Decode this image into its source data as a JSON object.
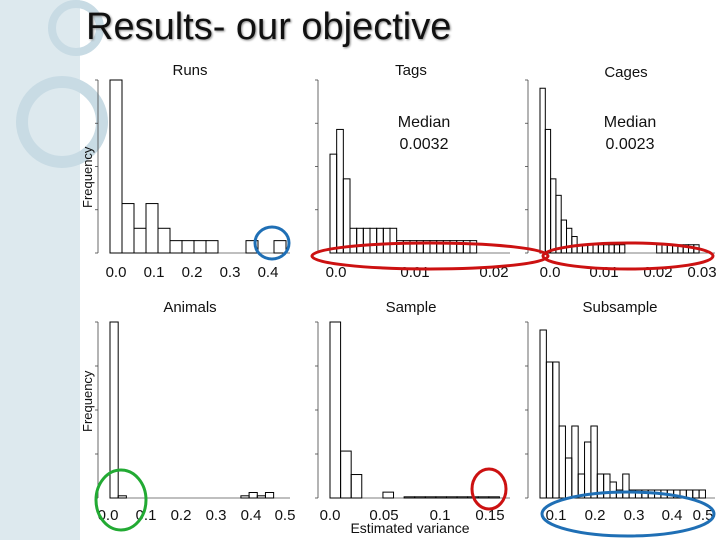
{
  "slide": {
    "title": "Results- our objective",
    "accent_color": "#dde9ee",
    "circle_colors": {
      "red": "#cc1111",
      "blue": "#1f6fb5",
      "green": "#22aa33",
      "deco": "#c8dbe4"
    }
  },
  "chart_data": [
    {
      "type": "bar",
      "title": "Runs",
      "ylabel": "Frequency",
      "xlim": [
        0.0,
        0.45
      ],
      "xticks": [
        "0.0",
        "0.1",
        "0.2",
        "0.3",
        "0.4"
      ],
      "ylim": [
        0,
        7
      ],
      "bins": [
        [
          0.0,
          0.03,
          7
        ],
        [
          0.03,
          0.06,
          2
        ],
        [
          0.06,
          0.09,
          1
        ],
        [
          0.09,
          0.12,
          2
        ],
        [
          0.12,
          0.15,
          1
        ],
        [
          0.15,
          0.18,
          0.5
        ],
        [
          0.18,
          0.21,
          0.5
        ],
        [
          0.21,
          0.24,
          0.5
        ],
        [
          0.24,
          0.27,
          0.5
        ],
        [
          0.34,
          0.37,
          0.5
        ],
        [
          0.41,
          0.44,
          0.5
        ]
      ],
      "annotations": []
    },
    {
      "type": "bar",
      "title": "Tags",
      "ylabel": "",
      "xlim": [
        0.0,
        0.027
      ],
      "xticks": [
        "0.0",
        "0.01",
        "0.02"
      ],
      "ylim": [
        0,
        7
      ],
      "bins": [
        [
          0.0,
          0.001,
          4
        ],
        [
          0.001,
          0.002,
          5
        ],
        [
          0.002,
          0.003,
          3
        ],
        [
          0.003,
          0.004,
          1
        ],
        [
          0.004,
          0.005,
          1
        ],
        [
          0.005,
          0.006,
          1
        ],
        [
          0.006,
          0.007,
          1
        ],
        [
          0.007,
          0.008,
          1
        ],
        [
          0.008,
          0.009,
          1
        ],
        [
          0.009,
          0.01,
          1
        ],
        [
          0.01,
          0.011,
          0.5
        ],
        [
          0.011,
          0.012,
          0.5
        ],
        [
          0.012,
          0.013,
          0.5
        ],
        [
          0.013,
          0.014,
          0.5
        ],
        [
          0.014,
          0.015,
          0.5
        ],
        [
          0.015,
          0.016,
          0.5
        ],
        [
          0.016,
          0.017,
          0.5
        ],
        [
          0.017,
          0.018,
          0.5
        ],
        [
          0.018,
          0.019,
          0.5
        ],
        [
          0.019,
          0.02,
          0.5
        ],
        [
          0.02,
          0.021,
          0.5
        ],
        [
          0.021,
          0.022,
          0.5
        ]
      ],
      "annotations": [
        "Median",
        "0.0032"
      ]
    },
    {
      "type": "bar",
      "title": "Cages",
      "ylabel": "",
      "xlim": [
        0.0,
        0.033
      ],
      "xticks": [
        "0.0",
        "0.01",
        "0.02",
        "0.03"
      ],
      "ylim": [
        0,
        21
      ],
      "bins": [
        [
          0.0,
          0.001,
          20
        ],
        [
          0.001,
          0.002,
          15
        ],
        [
          0.002,
          0.003,
          9
        ],
        [
          0.003,
          0.004,
          7
        ],
        [
          0.004,
          0.005,
          4
        ],
        [
          0.005,
          0.006,
          3
        ],
        [
          0.006,
          0.007,
          2
        ],
        [
          0.007,
          0.008,
          1
        ],
        [
          0.008,
          0.009,
          1
        ],
        [
          0.009,
          0.01,
          1
        ],
        [
          0.01,
          0.011,
          1
        ],
        [
          0.011,
          0.012,
          1
        ],
        [
          0.012,
          0.013,
          1
        ],
        [
          0.013,
          0.014,
          1
        ],
        [
          0.014,
          0.015,
          1
        ],
        [
          0.015,
          0.016,
          1
        ],
        [
          0.022,
          0.023,
          1
        ],
        [
          0.023,
          0.024,
          1
        ],
        [
          0.024,
          0.025,
          1
        ],
        [
          0.025,
          0.026,
          1
        ],
        [
          0.026,
          0.027,
          1
        ],
        [
          0.027,
          0.028,
          1
        ],
        [
          0.028,
          0.029,
          1
        ],
        [
          0.029,
          0.03,
          1
        ]
      ],
      "annotations": [
        "Median",
        "0.0023"
      ]
    },
    {
      "type": "bar",
      "title": "Animals",
      "ylabel": "Frequency",
      "xlim": [
        0.0,
        0.55
      ],
      "xticks": [
        "0.0",
        "0.1",
        "0.2",
        "0.3",
        "0.4",
        "0.5"
      ],
      "ylim": [
        0,
        8
      ],
      "bins": [
        [
          0.0,
          0.025,
          8
        ],
        [
          0.025,
          0.05,
          0.1
        ],
        [
          0.4,
          0.425,
          0.1
        ],
        [
          0.425,
          0.45,
          0.25
        ],
        [
          0.45,
          0.475,
          0.1
        ],
        [
          0.475,
          0.5,
          0.25
        ]
      ],
      "annotations": []
    },
    {
      "type": "bar",
      "title": "Sample",
      "ylabel": "",
      "xlabel": "Estimated variance",
      "xlim": [
        0.0,
        0.17
      ],
      "xticks": [
        "0.0",
        "0.05",
        "0.1",
        "0.15"
      ],
      "ylim": [
        0,
        30
      ],
      "bins": [
        [
          0.0,
          0.01,
          30
        ],
        [
          0.01,
          0.02,
          8
        ],
        [
          0.02,
          0.03,
          4
        ],
        [
          0.05,
          0.06,
          1
        ],
        [
          0.07,
          0.08,
          0.2
        ],
        [
          0.08,
          0.09,
          0.2
        ],
        [
          0.09,
          0.1,
          0.2
        ],
        [
          0.1,
          0.11,
          0.2
        ],
        [
          0.11,
          0.12,
          0.2
        ],
        [
          0.12,
          0.13,
          0.2
        ],
        [
          0.13,
          0.14,
          0.2
        ],
        [
          0.14,
          0.15,
          0.2
        ],
        [
          0.15,
          0.16,
          0.2
        ]
      ],
      "annotations": []
    },
    {
      "type": "bar",
      "title": "Subsample",
      "ylabel": "",
      "xlim": [
        0.0,
        0.55
      ],
      "xticks": [
        "0.1",
        "0.2",
        "0.3",
        "0.4",
        "0.5"
      ],
      "ylim": [
        0,
        22
      ],
      "bins": [
        [
          0.0,
          0.02,
          21
        ],
        [
          0.02,
          0.04,
          17
        ],
        [
          0.04,
          0.06,
          17
        ],
        [
          0.06,
          0.08,
          9
        ],
        [
          0.08,
          0.1,
          5
        ],
        [
          0.1,
          0.12,
          9
        ],
        [
          0.12,
          0.14,
          3
        ],
        [
          0.14,
          0.16,
          7
        ],
        [
          0.16,
          0.18,
          9
        ],
        [
          0.18,
          0.2,
          3
        ],
        [
          0.2,
          0.22,
          3
        ],
        [
          0.22,
          0.24,
          2
        ],
        [
          0.24,
          0.26,
          1
        ],
        [
          0.26,
          0.28,
          3
        ],
        [
          0.28,
          0.3,
          1
        ],
        [
          0.3,
          0.32,
          1
        ],
        [
          0.32,
          0.34,
          1
        ],
        [
          0.34,
          0.36,
          1
        ],
        [
          0.36,
          0.38,
          1
        ],
        [
          0.38,
          0.4,
          1
        ],
        [
          0.4,
          0.42,
          1
        ],
        [
          0.42,
          0.44,
          1
        ],
        [
          0.44,
          0.46,
          1
        ],
        [
          0.46,
          0.48,
          1
        ],
        [
          0.48,
          0.5,
          1
        ],
        [
          0.5,
          0.52,
          1
        ]
      ],
      "annotations": []
    }
  ]
}
